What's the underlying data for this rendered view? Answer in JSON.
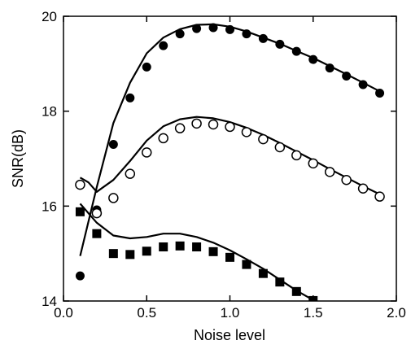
{
  "chart_data": {
    "type": "scatter",
    "title": "",
    "xlabel": "Noise level",
    "ylabel": "SNR(dB)",
    "xlim": [
      0.0,
      2.0
    ],
    "ylim": [
      14,
      20
    ],
    "xticks": [
      0.0,
      0.5,
      1.0,
      1.5,
      2.0
    ],
    "xtick_labels": [
      "0.0",
      "0.5",
      "1.0",
      "1.5",
      "2.0"
    ],
    "yticks": [
      14,
      16,
      18,
      20
    ],
    "ytick_labels": [
      "14",
      "16",
      "18",
      "20"
    ],
    "grid": false,
    "series": [
      {
        "marker": "filled-circle",
        "points": [
          [
            0.1,
            14.53
          ],
          [
            0.2,
            15.92
          ],
          [
            0.3,
            17.3
          ],
          [
            0.4,
            18.28
          ],
          [
            0.5,
            18.93
          ],
          [
            0.6,
            19.38
          ],
          [
            0.7,
            19.63
          ],
          [
            0.8,
            19.74
          ],
          [
            0.9,
            19.76
          ],
          [
            1.0,
            19.72
          ],
          [
            1.1,
            19.63
          ],
          [
            1.2,
            19.53
          ],
          [
            1.3,
            19.41
          ],
          [
            1.4,
            19.26
          ],
          [
            1.5,
            19.09
          ],
          [
            1.6,
            18.91
          ],
          [
            1.7,
            18.74
          ],
          [
            1.8,
            18.56
          ],
          [
            1.9,
            18.38
          ]
        ],
        "fit": [
          [
            0.1,
            14.95
          ],
          [
            0.2,
            16.4
          ],
          [
            0.3,
            17.75
          ],
          [
            0.4,
            18.6
          ],
          [
            0.5,
            19.22
          ],
          [
            0.6,
            19.55
          ],
          [
            0.7,
            19.73
          ],
          [
            0.8,
            19.82
          ],
          [
            0.9,
            19.83
          ],
          [
            1.0,
            19.78
          ],
          [
            1.1,
            19.68
          ],
          [
            1.2,
            19.55
          ],
          [
            1.3,
            19.42
          ],
          [
            1.4,
            19.27
          ],
          [
            1.5,
            19.12
          ],
          [
            1.6,
            18.95
          ],
          [
            1.7,
            18.78
          ],
          [
            1.8,
            18.6
          ],
          [
            1.9,
            18.42
          ]
        ]
      },
      {
        "marker": "open-circle",
        "points": [
          [
            0.1,
            16.45
          ],
          [
            0.2,
            15.85
          ],
          [
            0.3,
            16.17
          ],
          [
            0.4,
            16.68
          ],
          [
            0.5,
            17.13
          ],
          [
            0.6,
            17.43
          ],
          [
            0.7,
            17.64
          ],
          [
            0.8,
            17.74
          ],
          [
            0.9,
            17.72
          ],
          [
            1.0,
            17.67
          ],
          [
            1.1,
            17.56
          ],
          [
            1.2,
            17.41
          ],
          [
            1.3,
            17.24
          ],
          [
            1.4,
            17.07
          ],
          [
            1.5,
            16.9
          ],
          [
            1.6,
            16.72
          ],
          [
            1.7,
            16.55
          ],
          [
            1.8,
            16.37
          ],
          [
            1.9,
            16.2
          ]
        ],
        "fit": [
          [
            0.1,
            16.6
          ],
          [
            0.15,
            16.5
          ],
          [
            0.2,
            16.3
          ],
          [
            0.3,
            16.55
          ],
          [
            0.4,
            16.95
          ],
          [
            0.5,
            17.38
          ],
          [
            0.6,
            17.68
          ],
          [
            0.7,
            17.83
          ],
          [
            0.8,
            17.88
          ],
          [
            0.9,
            17.85
          ],
          [
            1.0,
            17.77
          ],
          [
            1.1,
            17.65
          ],
          [
            1.2,
            17.5
          ],
          [
            1.3,
            17.33
          ],
          [
            1.4,
            17.15
          ],
          [
            1.5,
            16.97
          ],
          [
            1.6,
            16.78
          ],
          [
            1.7,
            16.6
          ],
          [
            1.8,
            16.42
          ],
          [
            1.9,
            16.25
          ]
        ]
      },
      {
        "marker": "filled-square",
        "points": [
          [
            0.1,
            15.88
          ],
          [
            0.2,
            15.42
          ],
          [
            0.3,
            15.0
          ],
          [
            0.4,
            14.98
          ],
          [
            0.5,
            15.05
          ],
          [
            0.6,
            15.14
          ],
          [
            0.7,
            15.16
          ],
          [
            0.8,
            15.14
          ],
          [
            0.9,
            15.04
          ],
          [
            1.0,
            14.92
          ],
          [
            1.1,
            14.77
          ],
          [
            1.2,
            14.58
          ],
          [
            1.3,
            14.4
          ],
          [
            1.4,
            14.2
          ],
          [
            1.5,
            14.01
          ]
        ],
        "fit": [
          [
            0.1,
            16.05
          ],
          [
            0.2,
            15.65
          ],
          [
            0.3,
            15.38
          ],
          [
            0.4,
            15.32
          ],
          [
            0.5,
            15.35
          ],
          [
            0.6,
            15.42
          ],
          [
            0.7,
            15.42
          ],
          [
            0.8,
            15.35
          ],
          [
            0.9,
            15.23
          ],
          [
            1.0,
            15.07
          ],
          [
            1.1,
            14.88
          ],
          [
            1.2,
            14.68
          ],
          [
            1.3,
            14.45
          ],
          [
            1.4,
            14.22
          ],
          [
            1.5,
            14.02
          ],
          [
            1.55,
            13.9
          ]
        ]
      }
    ]
  }
}
